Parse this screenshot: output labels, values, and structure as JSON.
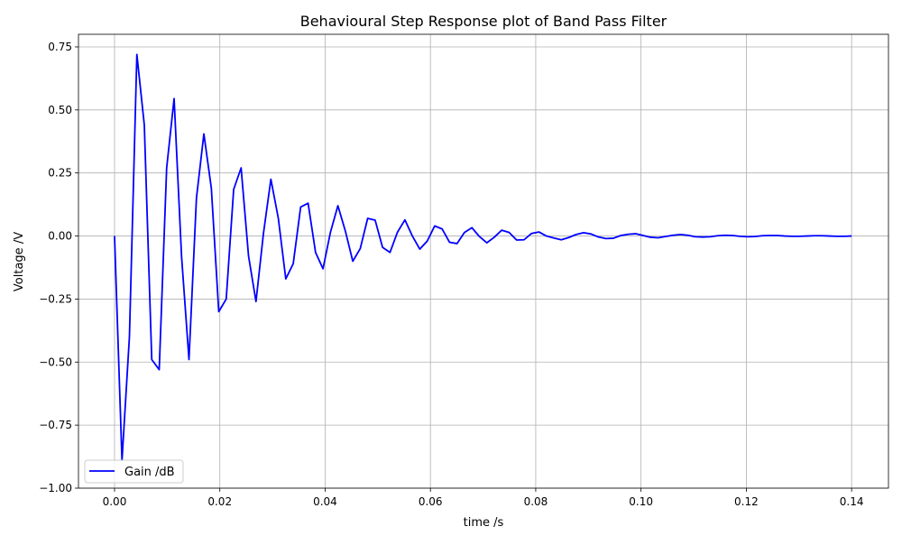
{
  "chart_data": {
    "type": "line",
    "title": "Behavioural Step Response plot of Band Pass Filter",
    "xlabel": "time /s",
    "ylabel": "Voltage /V",
    "xlim": [
      -0.00685,
      0.147
    ],
    "ylim": [
      -1.0,
      0.8
    ],
    "grid": true,
    "legend_placement": "lower-left",
    "x_ticks": [
      0.0,
      0.02,
      0.04,
      0.06,
      0.08,
      0.1,
      0.12,
      0.14
    ],
    "x_tick_labels": [
      "0.00",
      "0.02",
      "0.04",
      "0.06",
      "0.08",
      "0.10",
      "0.12",
      "0.14"
    ],
    "y_ticks": [
      -1.0,
      -0.75,
      -0.5,
      -0.25,
      0.0,
      0.25,
      0.5,
      0.75
    ],
    "y_tick_labels": [
      "−1.00",
      "−0.75",
      "−0.50",
      "−0.25",
      "0.00",
      "0.25",
      "0.50",
      "0.75"
    ],
    "x_linspace": {
      "start": 0.0,
      "stop": 0.14,
      "count": 100
    },
    "series": [
      {
        "name": "Gain /dB",
        "color": "#0000ff",
        "values": [
          0,
          -0.89,
          -0.4,
          0.72,
          0.44,
          -0.49,
          -0.53,
          0.27,
          0.545,
          -0.08,
          -0.49,
          0.15,
          0.405,
          0.19,
          -0.3,
          -0.25,
          0.185,
          0.27,
          -0.08,
          -0.26,
          0.01,
          0.225,
          0.07,
          -0.17,
          -0.11,
          0.115,
          0.13,
          -0.065,
          -0.13,
          0.015,
          0.12,
          0.02,
          -0.1,
          -0.05,
          0.07,
          0.063,
          -0.045,
          -0.065,
          0.015,
          0.064,
          0,
          -0.052,
          -0.02,
          0.04,
          0.028,
          -0.025,
          -0.03,
          0.014,
          0.033,
          -0.002,
          -0.027,
          -0.005,
          0.023,
          0.014,
          -0.016,
          -0.015,
          0.01,
          0.016,
          0.0,
          -0.008,
          -0.015,
          -0.006,
          0.006,
          0.013,
          0.008,
          -0.004,
          -0.01,
          -0.009,
          0.002,
          0.007,
          0.009,
          0.002,
          -0.005,
          -0.007,
          -0.002,
          0.003,
          0.006,
          0.003,
          -0.003,
          -0.004,
          -0.003,
          0.001,
          0.003,
          0.002,
          -0.001,
          -0.003,
          -0.002,
          0.001,
          0.002,
          0.002,
          0,
          -0.001,
          -0.001,
          0,
          0.001,
          0.001,
          0,
          -0.001,
          -0.001,
          0
        ]
      }
    ]
  }
}
